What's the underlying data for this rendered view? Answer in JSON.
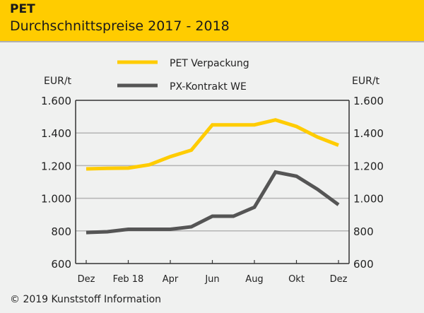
{
  "header": {
    "title": "PET",
    "subtitle": "Durchschnittspreise 2017 - 2018"
  },
  "footer": {
    "copyright": "© 2019 Kunststoff Information"
  },
  "colors": {
    "header_bg": "#ffcc00",
    "pet_line": "#ffcc00",
    "px_line": "#555555",
    "grid": "#b4b4b4",
    "axis": "#333333",
    "background": "#f0f1f0"
  },
  "chart_data": {
    "type": "line",
    "title": "PET",
    "subtitle": "Durchschnittspreise 2017 - 2018",
    "ylabel_left": "EUR/t",
    "ylabel_right": "EUR/t",
    "xlabel": "",
    "ylim": [
      600,
      1600
    ],
    "yticks": [
      600,
      800,
      1000,
      1200,
      1400,
      1600
    ],
    "ytick_labels": [
      "600",
      "800",
      "1.000",
      "1.200",
      "1.400",
      "1.600"
    ],
    "x": [
      "Dez 17",
      "Jan 18",
      "Feb 18",
      "Mär 18",
      "Apr 18",
      "Mai 18",
      "Jun 18",
      "Jul 18",
      "Aug 18",
      "Sep 18",
      "Okt 18",
      "Nov 18",
      "Dez 18"
    ],
    "xtick_indices": [
      0,
      2,
      4,
      6,
      8,
      10,
      12
    ],
    "xtick_labels": [
      "Dez",
      "Feb 18",
      "Apr",
      "Jun",
      "Aug",
      "Okt",
      "Dez"
    ],
    "grid": true,
    "legend_position": "top-center",
    "series": [
      {
        "name": "PET Verpackung",
        "color": "#ffcc00",
        "values": [
          1180,
          1183,
          1185,
          1205,
          1255,
          1295,
          1450,
          1450,
          1450,
          1480,
          1440,
          1375,
          1325
        ]
      },
      {
        "name": "PX-Kontrakt WE",
        "color": "#555555",
        "values": [
          790,
          795,
          810,
          810,
          810,
          825,
          890,
          890,
          945,
          1160,
          1135,
          1055,
          960
        ]
      }
    ]
  }
}
